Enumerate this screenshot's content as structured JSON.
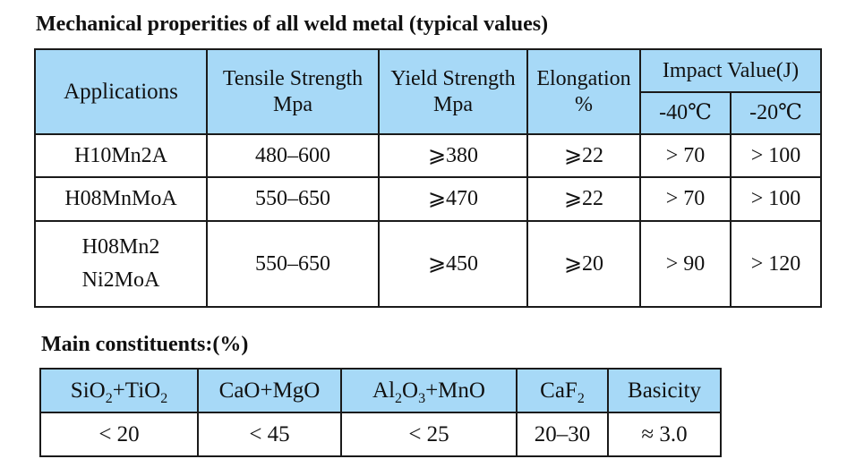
{
  "mechanical": {
    "title": "Mechanical properities of all weld metal (typical values)",
    "headers": {
      "applications": "Applications",
      "tensile_line1": "Tensile Strength",
      "tensile_line2": "Mpa",
      "yield_line1": "Yield Strength",
      "yield_line2": "Mpa",
      "elongation_line1": "Elongation",
      "elongation_line2": "%",
      "impact": "Impact Value(J)",
      "impact_minus40": "-40℃",
      "impact_minus20": "-20℃"
    },
    "rows": [
      {
        "application": "H10Mn2A",
        "tensile": "480–600",
        "yield": "⩾380",
        "elongation": "⩾22",
        "impact_minus40": "> 70",
        "impact_minus20": "> 100"
      },
      {
        "application": "H08MnMoA",
        "tensile": "550–650",
        "yield": "⩾470",
        "elongation": "⩾22",
        "impact_minus40": "> 70",
        "impact_minus20": "> 100"
      },
      {
        "application_line1": "H08Mn2",
        "application_line2": "Ni2MoA",
        "tensile": "550–650",
        "yield": "⩾450",
        "elongation": "⩾20",
        "impact_minus40": "> 90",
        "impact_minus20": "> 120"
      }
    ]
  },
  "constituents": {
    "title": "Main constituents:(%)",
    "headers": {
      "sio2_a": "SiO",
      "sio2_sub": "2",
      "sio2_b": "+TiO",
      "tio2_sub": "2",
      "cao_mgo": "CaO+MgO",
      "al_a": "Al",
      "al_sub": "2",
      "al_b": "O",
      "al_sub2": "3",
      "al_c": "+MnO",
      "caf_a": "CaF",
      "caf_sub": "2",
      "basicity": "Basicity"
    },
    "values": {
      "sio2_tio2": "< 20",
      "cao_mgo": "< 45",
      "al2o3_mno": "< 25",
      "caf2": "20–30",
      "basicity": "≈ 3.0"
    }
  },
  "colors": {
    "header_bg": "#a7d9f7",
    "border": "#1a1a1a"
  }
}
